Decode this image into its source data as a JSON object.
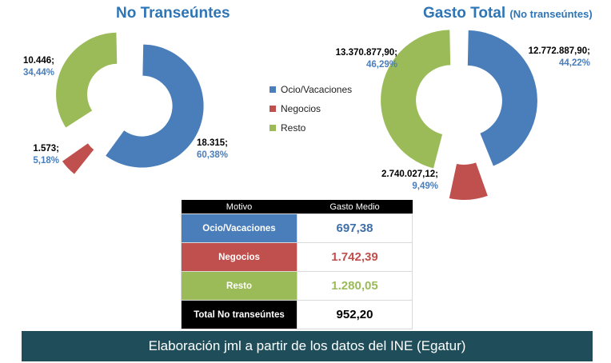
{
  "colors": {
    "ocio": "#4a7ebb",
    "negocios": "#c0504d",
    "resto": "#9bbb59",
    "title": "#2e75b6"
  },
  "left": {
    "title": "No Transeúntes",
    "chart_data": {
      "type": "pie",
      "title": "No Transeúntes",
      "categories": [
        "Ocio/Vacaciones",
        "Negocios",
        "Resto"
      ],
      "values": [
        18315,
        1573,
        10446
      ],
      "percent": [
        60.38,
        5.18,
        34.44
      ],
      "value_labels": [
        "18.315;",
        "1.573;",
        "10.446;"
      ],
      "percent_labels": [
        "60,38%",
        "5,18%",
        "34,44%"
      ]
    }
  },
  "right": {
    "title": "Gasto Total",
    "subtitle": "(No transeúntes)",
    "chart_data": {
      "type": "pie",
      "title": "Gasto Total (No transeúntes)",
      "categories": [
        "Ocio/Vacaciones",
        "Negocios",
        "Resto"
      ],
      "values": [
        12772887.9,
        2740027.12,
        13370877.9
      ],
      "percent": [
        44.22,
        9.49,
        46.29
      ],
      "value_labels": [
        "12.772.887,90;",
        "2.740.027,12;",
        "13.370.877,90;"
      ],
      "percent_labels": [
        "44,22%",
        "9,49%",
        "46,29%"
      ]
    }
  },
  "legend": [
    "Ocio/Vacaciones",
    "Negocios",
    "Resto"
  ],
  "table": {
    "type": "table",
    "headers": [
      "Motivo",
      "Gasto Medio"
    ],
    "rows": [
      {
        "motivo": "Ocio/Vacaciones",
        "gasto": "697,38"
      },
      {
        "motivo": "Negocios",
        "gasto": "1.742,39"
      },
      {
        "motivo": "Resto",
        "gasto": "1.280,05"
      },
      {
        "motivo": "Total No transeúntes",
        "gasto": "952,20"
      }
    ]
  },
  "footer": "Elaboración jml a partir de los datos del INE (Egatur)"
}
